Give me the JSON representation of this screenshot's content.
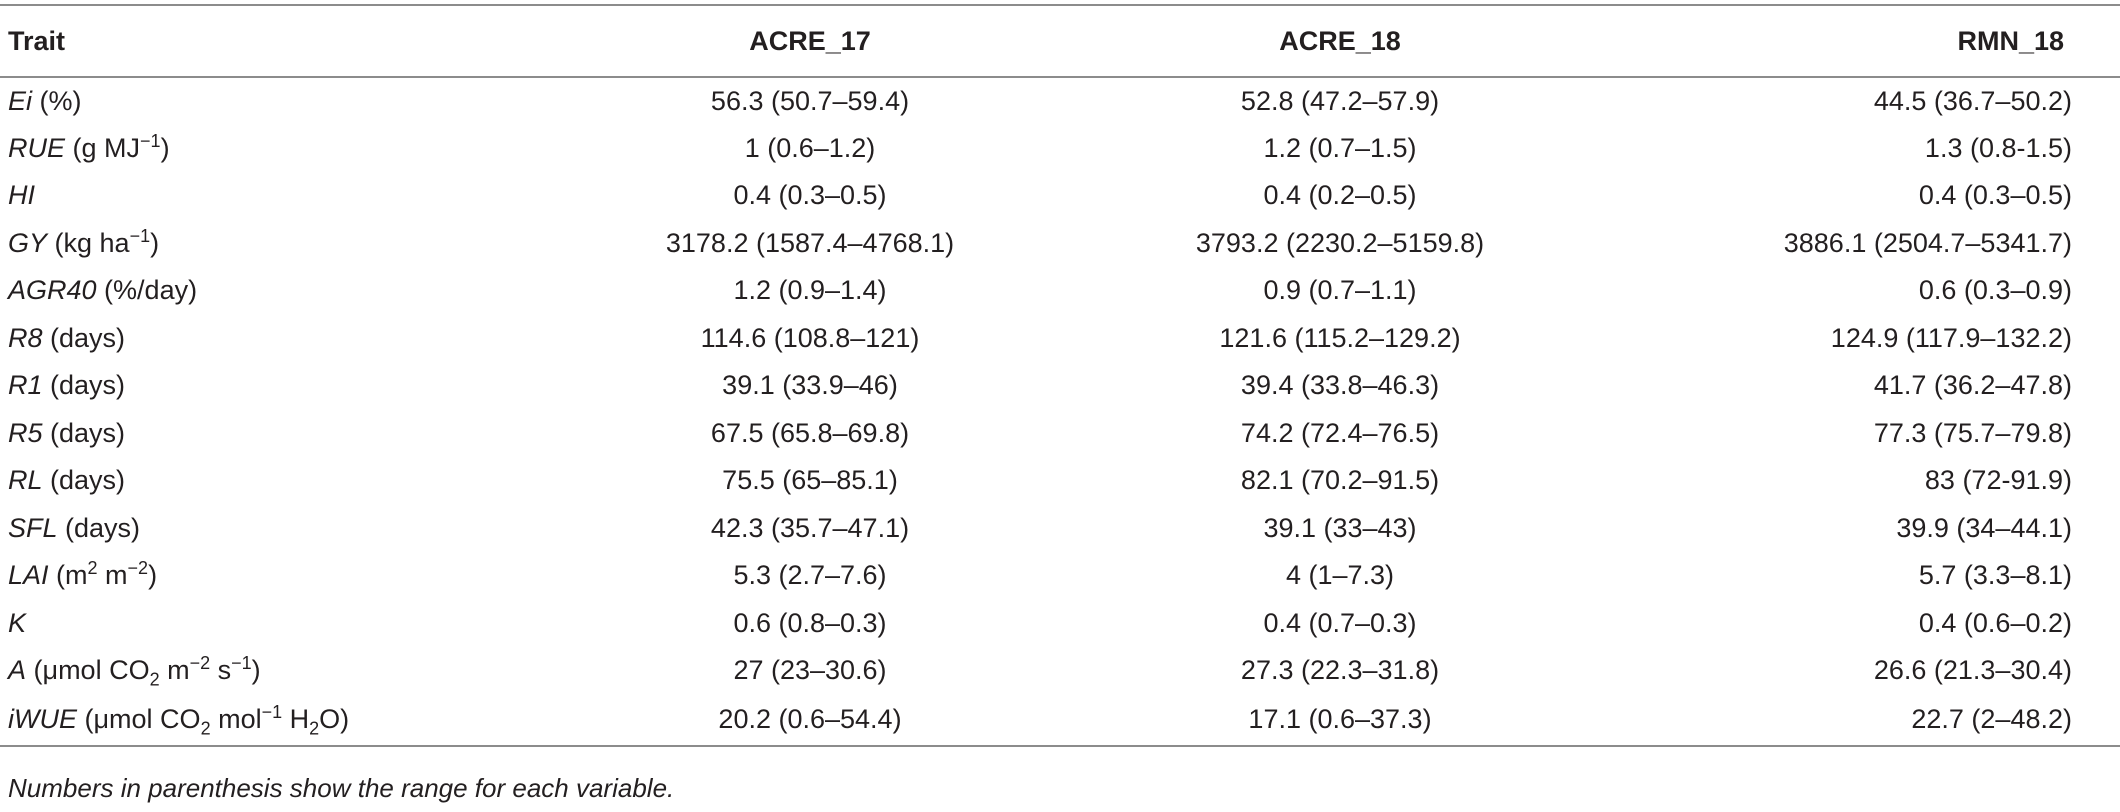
{
  "headers": [
    "Trait",
    "ACRE_17",
    "ACRE_18",
    "RMN_18"
  ],
  "rows": [
    {
      "abbr": "Ei",
      "unit_pre": " (%)",
      "sup1": "",
      "mid": "",
      "sup2": "",
      "unit_post": "",
      "values": [
        "56.3 (50.7–59.4)",
        "52.8 (47.2–57.9)",
        "44.5 (36.7–50.2)"
      ]
    },
    {
      "abbr": "RUE",
      "unit_pre": " (g MJ",
      "sup1": "−1",
      "mid": ")",
      "sup2": "",
      "unit_post": "",
      "values": [
        "1 (0.6–1.2)",
        "1.2 (0.7–1.5)",
        "1.3 (0.8-1.5)"
      ]
    },
    {
      "abbr": "HI",
      "unit_pre": "",
      "sup1": "",
      "mid": "",
      "sup2": "",
      "unit_post": "",
      "values": [
        "0.4 (0.3–0.5)",
        "0.4 (0.2–0.5)",
        "0.4 (0.3–0.5)"
      ]
    },
    {
      "abbr": "GY",
      "unit_pre": " (kg ha",
      "sup1": "−1",
      "mid": ")",
      "sup2": "",
      "unit_post": "",
      "values": [
        "3178.2 (1587.4–4768.1)",
        "3793.2 (2230.2–5159.8)",
        "3886.1 (2504.7–5341.7)"
      ]
    },
    {
      "abbr": "AGR40",
      "unit_pre": " (%/day)",
      "sup1": "",
      "mid": "",
      "sup2": "",
      "unit_post": "",
      "values": [
        "1.2 (0.9–1.4)",
        "0.9 (0.7–1.1)",
        "0.6 (0.3–0.9)"
      ]
    },
    {
      "abbr": "R8",
      "unit_pre": " (days)",
      "sup1": "",
      "mid": "",
      "sup2": "",
      "unit_post": "",
      "values": [
        "114.6 (108.8–121)",
        "121.6 (115.2–129.2)",
        "124.9 (117.9–132.2)"
      ]
    },
    {
      "abbr": "R1",
      "unit_pre": " (days)",
      "sup1": "",
      "mid": "",
      "sup2": "",
      "unit_post": "",
      "values": [
        "39.1 (33.9–46)",
        "39.4 (33.8–46.3)",
        "41.7 (36.2–47.8)"
      ]
    },
    {
      "abbr": "R5",
      "unit_pre": " (days)",
      "sup1": "",
      "mid": "",
      "sup2": "",
      "unit_post": "",
      "values": [
        "67.5 (65.8–69.8)",
        "74.2 (72.4–76.5)",
        "77.3 (75.7–79.8)"
      ]
    },
    {
      "abbr": "RL",
      "unit_pre": " (days)",
      "sup1": "",
      "mid": "",
      "sup2": "",
      "unit_post": "",
      "values": [
        "75.5 (65–85.1)",
        "82.1 (70.2–91.5)",
        "83 (72-91.9)"
      ]
    },
    {
      "abbr": "SFL",
      "unit_pre": " (days)",
      "sup1": "",
      "mid": "",
      "sup2": "",
      "unit_post": "",
      "values": [
        "42.3 (35.7–47.1)",
        "39.1 (33–43)",
        "39.9 (34–44.1)"
      ]
    },
    {
      "abbr": "LAI",
      "unit_pre": " (m",
      "sup1": "2",
      "mid": " m",
      "sup2": "−2",
      "unit_post": ")",
      "values": [
        "5.3 (2.7–7.6)",
        "4 (1–7.3)",
        "5.7 (3.3–8.1)"
      ]
    },
    {
      "abbr": "K",
      "unit_pre": "",
      "sup1": "",
      "mid": "",
      "sup2": "",
      "unit_post": "",
      "values": [
        "0.6 (0.8–0.3)",
        "0.4 (0.7–0.3)",
        "0.4 (0.6–0.2)"
      ]
    }
  ],
  "row_A": {
    "abbr": "A",
    "p1": " (μmol CO",
    "s1": "2",
    "p2": " m",
    "e1": "−2",
    "p3": " s",
    "e2": "−1",
    "p4": ")",
    "values": [
      "27 (23–30.6)",
      "27.3 (22.3–31.8)",
      "26.6 (21.3–30.4)"
    ]
  },
  "row_iWUE": {
    "abbr": "iWUE",
    "p1": " (μmol CO",
    "s1": "2",
    "p2": " mol",
    "e1": "−1",
    "p3": " H",
    "s2": "2",
    "p4": "O)",
    "values": [
      "20.2 (0.6–54.4)",
      "17.1 (0.6–37.3)",
      "22.7 (2–48.2)"
    ]
  },
  "footnote": "Numbers in parenthesis show the range for each variable."
}
